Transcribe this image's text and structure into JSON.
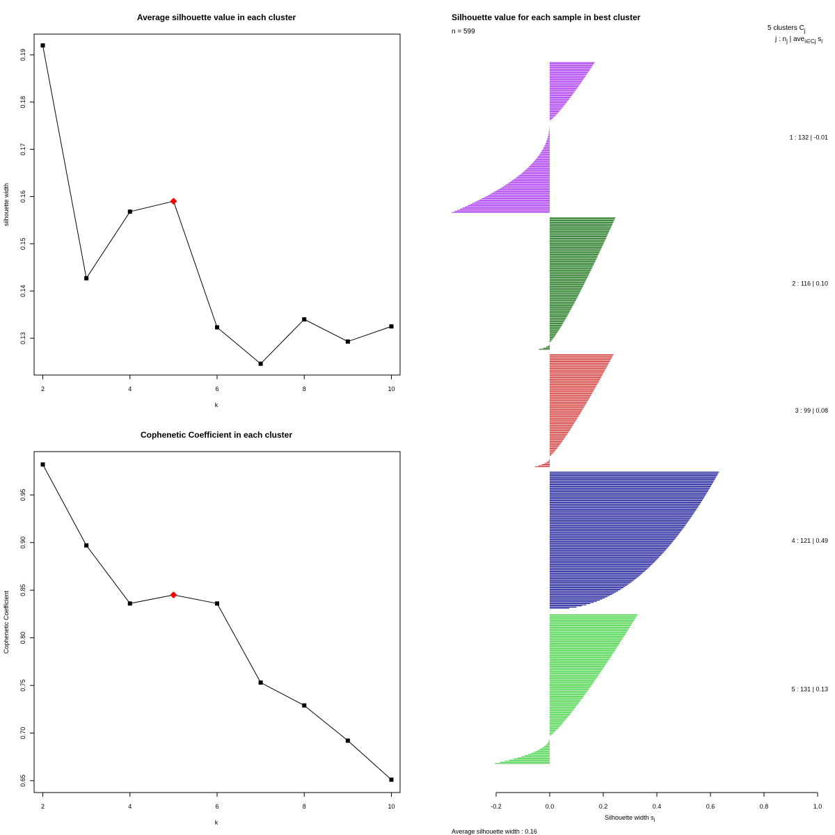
{
  "chart_data": [
    {
      "type": "line",
      "title": "Average silhouette value in each cluster",
      "xlabel": "k",
      "ylabel": "silhouette width",
      "x": [
        2,
        3,
        4,
        5,
        6,
        7,
        8,
        9,
        10
      ],
      "y": [
        0.192,
        0.1427,
        0.1568,
        0.159,
        0.1323,
        0.1246,
        0.134,
        0.1293,
        0.1325
      ],
      "highlight_k": 5,
      "highlight_color": "#ff0000",
      "xlim": [
        1.8,
        10.2
      ],
      "ylim": [
        0.1222,
        0.1944
      ],
      "x_ticks": [
        2,
        4,
        6,
        8,
        10
      ],
      "x_tick_labels": [
        "2",
        "4",
        "6",
        "8",
        "10"
      ],
      "y_ticks": [
        0.13,
        0.14,
        0.15,
        0.16,
        0.17,
        0.18,
        0.19
      ],
      "y_tick_labels": [
        "0.13",
        "0.14",
        "0.15",
        "0.16",
        "0.17",
        "0.18",
        "0.19"
      ]
    },
    {
      "type": "line",
      "title": "Cophenetic Coefficient in each cluster",
      "xlabel": "k",
      "ylabel": "Cophenetic Coefficient",
      "x": [
        2,
        3,
        4,
        5,
        6,
        7,
        8,
        9,
        10
      ],
      "y": [
        0.982,
        0.897,
        0.836,
        0.845,
        0.836,
        0.753,
        0.729,
        0.692,
        0.651
      ],
      "highlight_k": 5,
      "highlight_color": "#ff0000",
      "xlim": [
        1.8,
        10.2
      ],
      "ylim": [
        0.6375,
        0.9955
      ],
      "x_ticks": [
        2,
        4,
        6,
        8,
        10
      ],
      "x_tick_labels": [
        "2",
        "4",
        "6",
        "8",
        "10"
      ],
      "y_ticks": [
        0.65,
        0.7,
        0.75,
        0.8,
        0.85,
        0.9,
        0.95
      ],
      "y_tick_labels": [
        "0.65",
        "0.70",
        "0.75",
        "0.80",
        "0.85",
        "0.90",
        "0.95"
      ]
    },
    {
      "type": "bar",
      "orientation": "horizontal",
      "title": "Silhouette value for each sample in best cluster",
      "n_label": "n = 599",
      "header_label": "5  clusters  C",
      "header_sub": "j",
      "header_line2": "j :  n",
      "header_line2_sub": "j",
      "header_line2_rest": " | ave",
      "header_line2_sub2": "i∈Cj",
      "header_line2_end": " s",
      "header_line2_sub3": "i",
      "xlabel_main": "Silhouette width  s",
      "xlabel_sub": "i",
      "footer_label": "Average silhouette width :  0.16",
      "xlim": [
        -0.2,
        1.0
      ],
      "x_ticks": [
        -0.2,
        0.0,
        0.2,
        0.4,
        0.6,
        0.8,
        1.0
      ],
      "x_tick_labels": [
        "-0.2",
        "0.0",
        "0.2",
        "0.4",
        "0.6",
        "0.8",
        "1.0"
      ],
      "average_width": 0.16,
      "clusters": [
        {
          "id": 1,
          "n": 132,
          "ave": -0.01,
          "label": "1 :   132  |  -0.01",
          "color": "#a020f0",
          "max": 0.168,
          "pos_n": 52,
          "neg_min": -0.365,
          "neg_n": 80
        },
        {
          "id": 2,
          "n": 116,
          "ave": 0.1,
          "label": "2 :   116  |  0.10",
          "color": "#006400",
          "max": 0.245,
          "pos_n": 110,
          "neg_min": -0.04,
          "neg_n": 6
        },
        {
          "id": 3,
          "n": 99,
          "ave": 0.08,
          "label": "3 :   99  |  0.08",
          "color": "#cd2626",
          "max": 0.238,
          "pos_n": 90,
          "neg_min": -0.055,
          "neg_n": 9
        },
        {
          "id": 4,
          "n": 121,
          "ave": 0.49,
          "label": "4 :   121  |  0.49",
          "color": "#00008b",
          "max": 0.632,
          "pos_n": 121,
          "neg_min": 0,
          "neg_n": 0
        },
        {
          "id": 5,
          "n": 131,
          "ave": 0.13,
          "label": "5 :   131  |  0.13",
          "color": "#32cd32",
          "max": 0.328,
          "pos_n": 107,
          "neg_min": -0.205,
          "neg_n": 24
        }
      ]
    }
  ]
}
